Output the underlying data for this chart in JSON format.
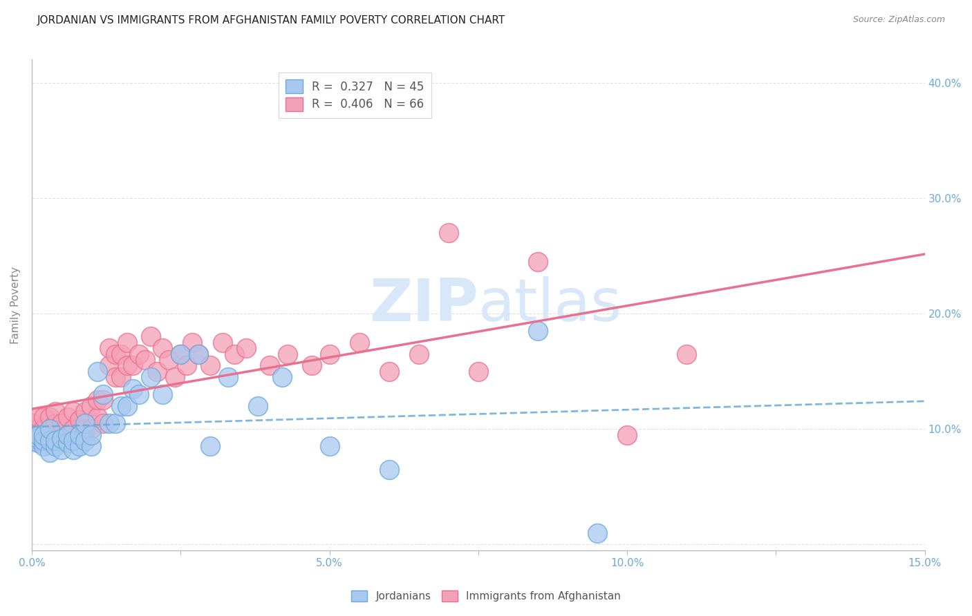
{
  "title": "JORDANIAN VS IMMIGRANTS FROM AFGHANISTAN FAMILY POVERTY CORRELATION CHART",
  "source": "Source: ZipAtlas.com",
  "ylabel": "Family Poverty",
  "xlim": [
    0.0,
    0.15
  ],
  "ylim": [
    -0.005,
    0.42
  ],
  "xticks": [
    0.0,
    0.025,
    0.05,
    0.075,
    0.1,
    0.125,
    0.15
  ],
  "xtick_labels": [
    "0.0%",
    "",
    "5.0%",
    "",
    "10.0%",
    "",
    "15.0%"
  ],
  "yticks": [
    0.0,
    0.1,
    0.2,
    0.3,
    0.4
  ],
  "ytick_labels": [
    "",
    "10.0%",
    "20.0%",
    "30.0%",
    "40.0%"
  ],
  "color_jordan": "#A8C8F0",
  "color_jordan_edge": "#6AAAD8",
  "color_afghan": "#F4A0B8",
  "color_afghan_edge": "#E87090",
  "color_jordan_line": "#6AAAD8",
  "color_afghan_line": "#E87090",
  "watermark_color": "#D8E8F8",
  "tick_color": "#6AAAD8",
  "grid_color": "#DDDDDD",
  "title_fontsize": 11,
  "jordan_x": [
    0.0,
    0.0,
    0.001,
    0.001,
    0.001,
    0.002,
    0.002,
    0.002,
    0.003,
    0.003,
    0.003,
    0.004,
    0.004,
    0.005,
    0.005,
    0.006,
    0.006,
    0.007,
    0.007,
    0.008,
    0.008,
    0.009,
    0.009,
    0.01,
    0.01,
    0.011,
    0.012,
    0.013,
    0.014,
    0.015,
    0.016,
    0.017,
    0.018,
    0.02,
    0.022,
    0.025,
    0.028,
    0.03,
    0.033,
    0.038,
    0.042,
    0.05,
    0.06,
    0.085,
    0.095
  ],
  "jordan_y": [
    0.09,
    0.092,
    0.088,
    0.092,
    0.095,
    0.085,
    0.09,
    0.095,
    0.08,
    0.09,
    0.1,
    0.085,
    0.09,
    0.082,
    0.092,
    0.088,
    0.095,
    0.082,
    0.09,
    0.085,
    0.095,
    0.09,
    0.105,
    0.085,
    0.095,
    0.15,
    0.13,
    0.105,
    0.105,
    0.12,
    0.12,
    0.135,
    0.13,
    0.145,
    0.13,
    0.165,
    0.165,
    0.085,
    0.145,
    0.12,
    0.145,
    0.085,
    0.065,
    0.185,
    0.01
  ],
  "afghan_x": [
    0.0,
    0.0,
    0.001,
    0.001,
    0.001,
    0.002,
    0.002,
    0.002,
    0.003,
    0.003,
    0.003,
    0.004,
    0.004,
    0.004,
    0.005,
    0.005,
    0.006,
    0.006,
    0.007,
    0.007,
    0.008,
    0.008,
    0.009,
    0.009,
    0.01,
    0.01,
    0.011,
    0.011,
    0.012,
    0.012,
    0.013,
    0.013,
    0.014,
    0.014,
    0.015,
    0.015,
    0.016,
    0.016,
    0.017,
    0.018,
    0.019,
    0.02,
    0.021,
    0.022,
    0.023,
    0.024,
    0.025,
    0.026,
    0.027,
    0.028,
    0.03,
    0.032,
    0.034,
    0.036,
    0.04,
    0.043,
    0.047,
    0.05,
    0.055,
    0.06,
    0.065,
    0.07,
    0.075,
    0.085,
    0.1,
    0.11
  ],
  "afghan_y": [
    0.095,
    0.105,
    0.09,
    0.1,
    0.11,
    0.09,
    0.1,
    0.11,
    0.088,
    0.1,
    0.11,
    0.095,
    0.105,
    0.115,
    0.09,
    0.105,
    0.095,
    0.11,
    0.1,
    0.115,
    0.095,
    0.108,
    0.1,
    0.115,
    0.1,
    0.12,
    0.11,
    0.125,
    0.105,
    0.125,
    0.155,
    0.17,
    0.145,
    0.165,
    0.145,
    0.165,
    0.155,
    0.175,
    0.155,
    0.165,
    0.16,
    0.18,
    0.15,
    0.17,
    0.16,
    0.145,
    0.165,
    0.155,
    0.175,
    0.165,
    0.155,
    0.175,
    0.165,
    0.17,
    0.155,
    0.165,
    0.155,
    0.165,
    0.175,
    0.15,
    0.165,
    0.27,
    0.15,
    0.245,
    0.095,
    0.165
  ]
}
